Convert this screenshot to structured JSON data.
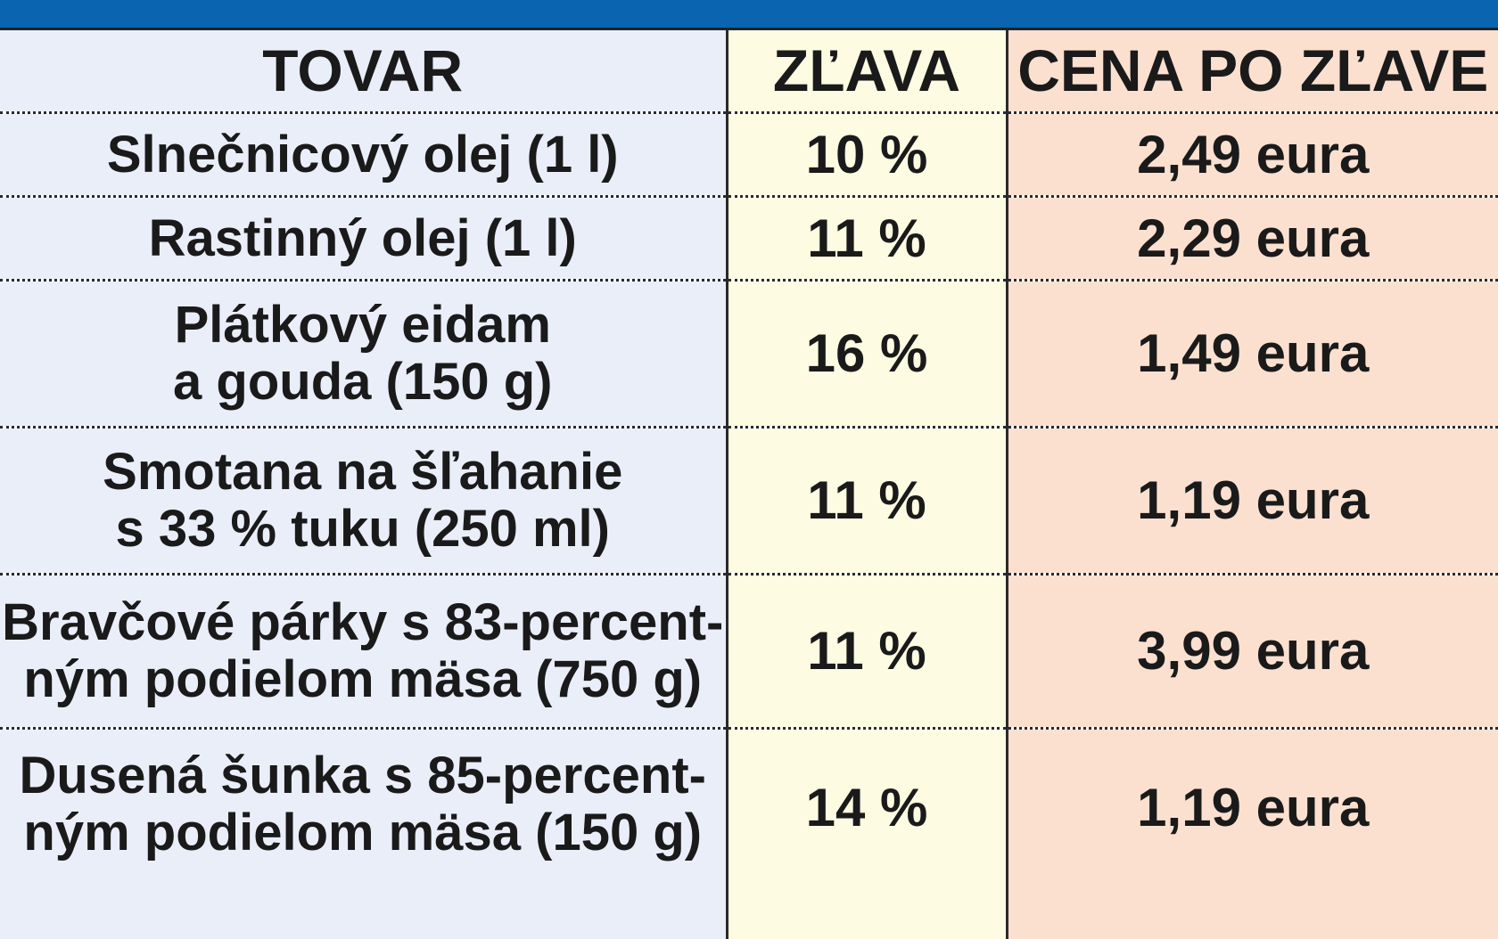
{
  "table": {
    "headers": [
      "TOVAR",
      "ZĽAVA",
      "CENA PO ZĽAVE"
    ],
    "rows": [
      {
        "item_lines": [
          "Slnečnicový olej (1 l)"
        ],
        "discount": "10 %",
        "price": "2,49 eura"
      },
      {
        "item_lines": [
          "Rastinný olej (1 l)"
        ],
        "discount": "11 %",
        "price": "2,29 eura"
      },
      {
        "item_lines": [
          "Plátkový eidam",
          "a gouda (150 g)"
        ],
        "discount": "16 %",
        "price": "1,49 eura"
      },
      {
        "item_lines": [
          "Smotana na šľahanie",
          "s 33 % tuku (250 ml)"
        ],
        "discount": "11 %",
        "price": "1,19 eura"
      },
      {
        "item_lines": [
          "Bravčové párky s 83-percent-",
          "ným podielom mäsa (750 g)"
        ],
        "discount": "11 %",
        "price": "3,99 eura"
      },
      {
        "item_lines": [
          "Dusená šunka s 85-percent-",
          "ným podielom mäsa (150 g)"
        ],
        "discount": "14 %",
        "price": "1,19 eura"
      }
    ]
  },
  "colors": {
    "top_bar": "#0a64b0",
    "item_column": "#e9eef9",
    "discount_column": "#fdfbe2",
    "price_column": "#fbe0d0",
    "text": "#1a1a1a"
  }
}
